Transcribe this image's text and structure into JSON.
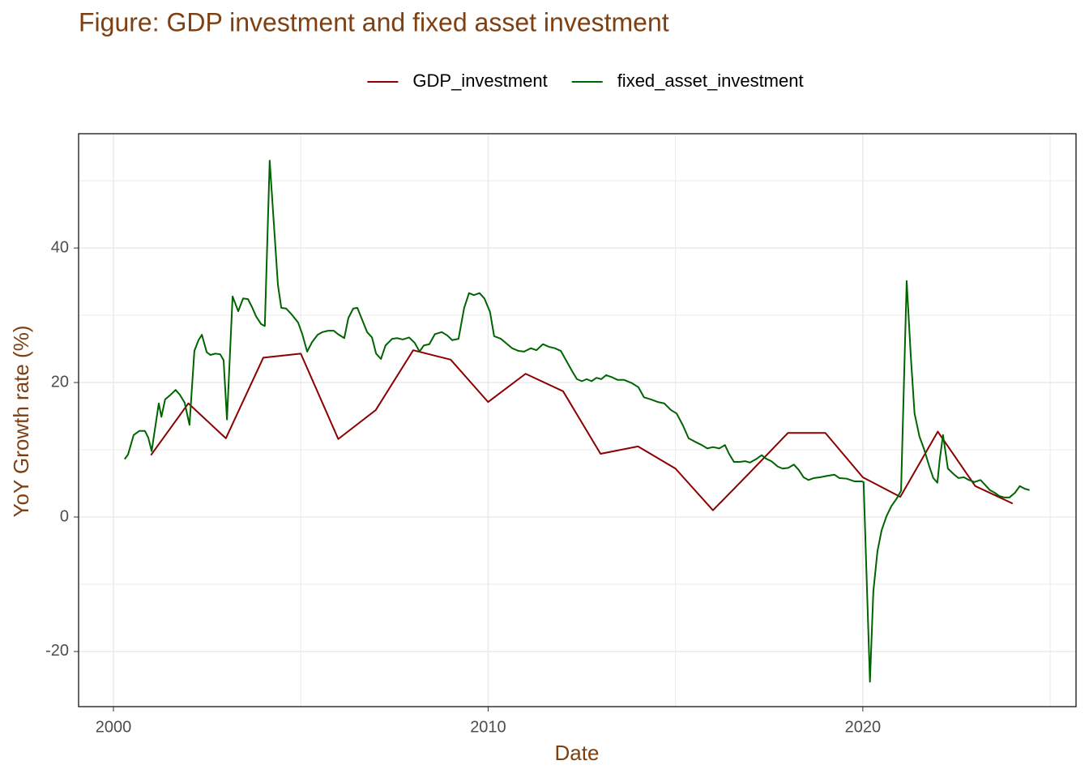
{
  "chart_data": {
    "type": "line",
    "title": "Figure: GDP investment and fixed asset investment",
    "x_label": "Date",
    "y_label": "YoY Growth rate (%)",
    "legend_position": "top",
    "grid": true,
    "xlim": [
      1999.07,
      2025.69
    ],
    "ylim": [
      -28.2,
      57
    ],
    "xticks": [
      2000,
      2010,
      2020
    ],
    "yticks": [
      -20,
      0,
      20,
      40
    ],
    "minor_xticks": [
      2005,
      2015,
      2025
    ],
    "minor_yticks": [
      -10,
      10,
      30,
      50
    ],
    "series": [
      {
        "name": "GDP_investment",
        "color": "#8b0000",
        "x": [
          2001,
          2002,
          2003,
          2004,
          2005,
          2006,
          2007,
          2008,
          2009,
          2010,
          2011,
          2012,
          2013,
          2014,
          2015,
          2016,
          2017,
          2018,
          2019,
          2020,
          2021,
          2022,
          2023,
          2024
        ],
        "values": [
          9.2,
          16.9,
          11.7,
          23.7,
          24.3,
          11.6,
          15.9,
          24.8,
          23.4,
          17.1,
          21.3,
          18.7,
          9.4,
          10.5,
          7.2,
          1.0,
          6.7,
          12.5,
          12.5,
          5.9,
          3.0,
          12.7,
          4.6,
          2.0
        ]
      },
      {
        "name": "fixed_asset_investment",
        "color": "#006400",
        "x": [
          2000.3,
          2000.39,
          2000.54,
          2000.69,
          2000.84,
          2000.93,
          2001.02,
          2001.21,
          2001.28,
          2001.38,
          2001.51,
          2001.66,
          2001.77,
          2001.9,
          2002.03,
          2002.16,
          2002.27,
          2002.36,
          2002.49,
          2002.59,
          2002.72,
          2002.85,
          2002.94,
          2003.03,
          2003.18,
          2003.33,
          2003.46,
          2003.59,
          2003.7,
          2003.81,
          2003.94,
          2004.04,
          2004.17,
          2004.28,
          2004.39,
          2004.48,
          2004.61,
          2004.76,
          2004.93,
          2005.04,
          2005.17,
          2005.3,
          2005.45,
          2005.58,
          2005.73,
          2005.88,
          2005.99,
          2006.16,
          2006.27,
          2006.4,
          2006.51,
          2006.64,
          2006.77,
          2006.9,
          2007.01,
          2007.14,
          2007.26,
          2007.44,
          2007.57,
          2007.72,
          2007.89,
          2008.04,
          2008.17,
          2008.28,
          2008.43,
          2008.58,
          2008.76,
          2008.91,
          2009.04,
          2009.21,
          2009.36,
          2009.49,
          2009.62,
          2009.77,
          2009.9,
          2010.05,
          2010.16,
          2010.34,
          2010.49,
          2010.64,
          2010.81,
          2010.96,
          2011.14,
          2011.29,
          2011.46,
          2011.63,
          2011.78,
          2011.94,
          2012.11,
          2012.24,
          2012.37,
          2012.5,
          2012.63,
          2012.76,
          2012.89,
          2013.02,
          2013.15,
          2013.3,
          2013.45,
          2013.62,
          2013.84,
          2014.01,
          2014.16,
          2014.34,
          2014.53,
          2014.7,
          2014.88,
          2015.03,
          2015.2,
          2015.35,
          2015.52,
          2015.7,
          2015.85,
          2016.0,
          2016.17,
          2016.32,
          2016.43,
          2016.56,
          2016.71,
          2016.86,
          2016.99,
          2017.15,
          2017.3,
          2017.41,
          2017.56,
          2017.73,
          2017.86,
          2018.01,
          2018.16,
          2018.29,
          2018.42,
          2018.55,
          2018.7,
          2018.85,
          2019.03,
          2019.24,
          2019.37,
          2019.57,
          2019.78,
          2019.96,
          2020.02,
          2020.19,
          2020.28,
          2020.39,
          2020.5,
          2020.63,
          2020.76,
          2020.91,
          2021.02,
          2021.17,
          2021.28,
          2021.38,
          2021.51,
          2021.64,
          2021.77,
          2021.88,
          2021.99,
          2022.05,
          2022.14,
          2022.27,
          2022.42,
          2022.55,
          2022.7,
          2022.83,
          2022.98,
          2023.14,
          2023.26,
          2023.39,
          2023.52,
          2023.65,
          2023.78,
          2023.91,
          2024.06,
          2024.19,
          2024.32,
          2024.45
        ],
        "values": [
          8.6,
          9.3,
          12.2,
          12.8,
          12.8,
          11.8,
          9.8,
          16.9,
          14.9,
          17.5,
          18.1,
          18.9,
          18.2,
          17.0,
          13.7,
          24.7,
          26.3,
          27.1,
          24.5,
          24.1,
          24.3,
          24.2,
          23.3,
          14.5,
          32.8,
          30.6,
          32.5,
          32.4,
          31.2,
          29.8,
          28.7,
          28.4,
          53.0,
          43.7,
          34.5,
          31.1,
          31.0,
          30.1,
          28.9,
          27.2,
          24.6,
          26.0,
          27.1,
          27.5,
          27.7,
          27.7,
          27.2,
          26.6,
          29.6,
          31.0,
          31.1,
          29.3,
          27.5,
          26.7,
          24.3,
          23.5,
          25.5,
          26.5,
          26.6,
          26.4,
          26.7,
          25.9,
          24.6,
          25.5,
          25.7,
          27.2,
          27.5,
          27.0,
          26.3,
          26.5,
          31.1,
          33.3,
          33.0,
          33.3,
          32.5,
          30.5,
          26.9,
          26.5,
          25.8,
          25.1,
          24.7,
          24.6,
          25.1,
          24.8,
          25.7,
          25.3,
          25.1,
          24.7,
          23.0,
          21.7,
          20.5,
          20.2,
          20.5,
          20.2,
          20.7,
          20.5,
          21.1,
          20.8,
          20.4,
          20.4,
          19.9,
          19.3,
          17.8,
          17.5,
          17.1,
          16.9,
          15.9,
          15.4,
          13.6,
          11.7,
          11.2,
          10.7,
          10.2,
          10.4,
          10.2,
          10.7,
          9.4,
          8.2,
          8.2,
          8.3,
          8.1,
          8.6,
          9.2,
          8.7,
          8.3,
          7.5,
          7.2,
          7.3,
          7.8,
          7.0,
          5.9,
          5.5,
          5.8,
          5.9,
          6.1,
          6.3,
          5.8,
          5.7,
          5.3,
          5.3,
          5.2,
          -24.5,
          -11.1,
          -5.1,
          -2.0,
          0.1,
          1.6,
          2.8,
          3.9,
          35.1,
          23.9,
          15.4,
          12.0,
          10.0,
          7.6,
          5.8,
          5.1,
          8.4,
          12.2,
          7.2,
          6.4,
          5.8,
          5.9,
          5.5,
          5.2,
          5.5,
          4.8,
          4.0,
          3.6,
          3.1,
          2.9,
          2.9,
          3.6,
          4.6,
          4.2,
          4.0
        ]
      }
    ]
  }
}
